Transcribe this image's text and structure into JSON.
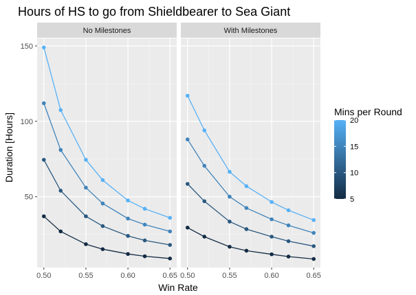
{
  "chart_data": {
    "type": "line",
    "title": "Hours of HS to go from Shieldbearer to Sea Giant",
    "xlabel": "Win Rate",
    "ylabel": "Duration [Hours]",
    "xlim": [
      0.492,
      0.658
    ],
    "ylim": [
      3,
      155
    ],
    "x_ticks": [
      0.5,
      0.55,
      0.6,
      0.65
    ],
    "x_tick_labels": [
      "0.50",
      "0.55",
      "0.60",
      "0.65"
    ],
    "y_ticks": [
      50,
      100,
      150
    ],
    "y_tick_labels": [
      "50",
      "100",
      "150"
    ],
    "grid": true,
    "legend": {
      "title": "Mins per Round",
      "position": "right",
      "type": "colorbar",
      "range": [
        5,
        20
      ],
      "ticks": [
        5,
        10,
        15,
        20
      ],
      "tick_labels": [
        "5",
        "10",
        "15",
        "20"
      ],
      "color_low": "#132b43",
      "color_high": "#56b1f7"
    },
    "x": [
      0.5,
      0.52,
      0.55,
      0.57,
      0.6,
      0.62,
      0.65
    ],
    "panels": [
      {
        "name": "No Milestones",
        "series": [
          {
            "mins": 5,
            "values": [
              37,
              27,
              18.5,
              15.2,
              12,
              10.5,
              9
            ]
          },
          {
            "mins": 10,
            "values": [
              74.5,
              54,
              37,
              30.5,
              24,
              21,
              18
            ]
          },
          {
            "mins": 15,
            "values": [
              112,
              81,
              56,
              45.5,
              35.5,
              31.5,
              27
            ]
          },
          {
            "mins": 20,
            "values": [
              149,
              107.5,
              74.5,
              61,
              47.5,
              42,
              36
            ]
          }
        ]
      },
      {
        "name": "With Milestones",
        "series": [
          {
            "mins": 5,
            "values": [
              29.5,
              23.5,
              16.8,
              14.2,
              11.8,
              10.3,
              8.7
            ]
          },
          {
            "mins": 10,
            "values": [
              58.5,
              47,
              33.5,
              28.5,
              23.5,
              20.5,
              17.2
            ]
          },
          {
            "mins": 15,
            "values": [
              88,
              70.5,
              50,
              42.5,
              35,
              31,
              26
            ]
          },
          {
            "mins": 20,
            "values": [
              117,
              94,
              66.5,
              57,
              46.5,
              41,
              34.5
            ]
          }
        ]
      }
    ]
  }
}
